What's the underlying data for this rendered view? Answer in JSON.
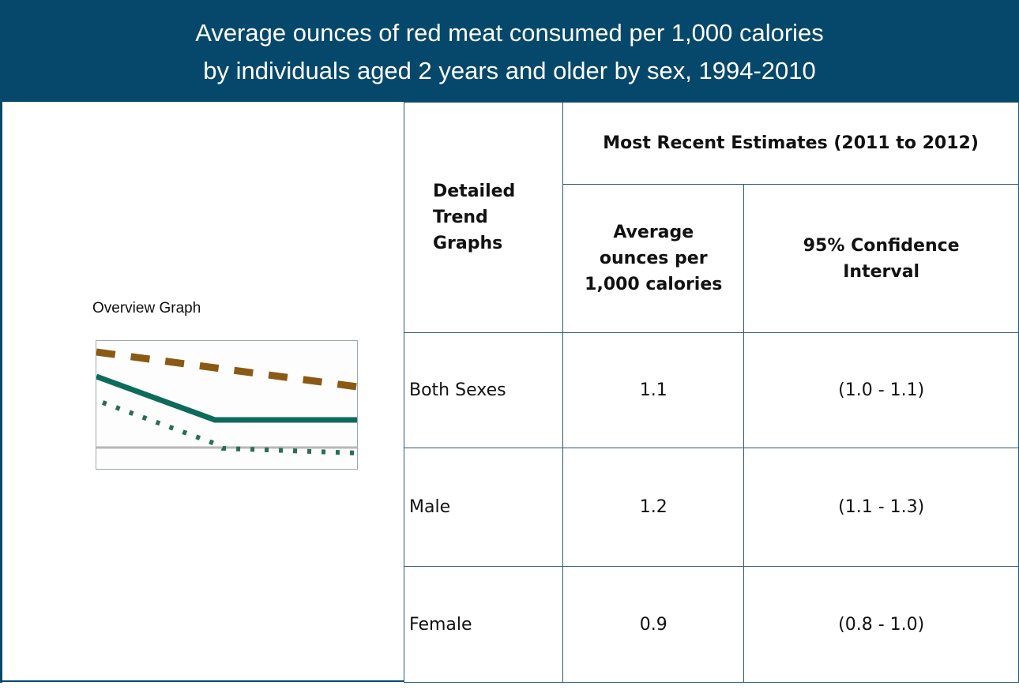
{
  "title_lines": [
    "Average ounces of red meat consumed per 1,000 calories",
    "by individuals aged 2 years and older by sex, 1994-2010"
  ],
  "overview_label": "Overview Graph",
  "thumbnail_colors": {
    "dashed": "#8a5a14",
    "solid": "#0c6b5a",
    "dotted": "#2a6b5a",
    "baseline": "#b8b8b8"
  },
  "table": {
    "col_header": "Detailed Trend Graphs",
    "group_header": "Most Recent Estimates (2011 to 2012)",
    "sub_headers": [
      "Average ounces per 1,000 calories",
      "95% Confidence Interval"
    ],
    "rows": [
      {
        "label": "Both Sexes",
        "avg": "1.1",
        "ci": "(1.0 - 1.1)"
      },
      {
        "label": "Male",
        "avg": "1.2",
        "ci": "(1.1 - 1.3)"
      },
      {
        "label": "Female",
        "avg": "0.9",
        "ci": "(0.8 - 1.0)"
      }
    ]
  }
}
